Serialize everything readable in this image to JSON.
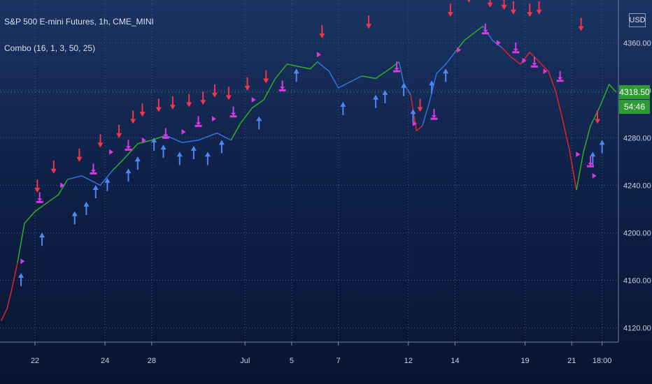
{
  "header": {
    "symbol_line": "S&P 500 E-mini Futures, 1h, CME_MINI",
    "indicator_line": "Combo (16, 1, 3, 50, 25)",
    "currency": "USD"
  },
  "price_badge": {
    "last_price": "4318.50",
    "countdown": "54:46"
  },
  "colors": {
    "up_trend": "#2fa52b",
    "neutral_trend": "#2f6fd6",
    "down_trend": "#d3232c",
    "buy_arrow": "#4e86f2",
    "sell_arrow": "#f0364a",
    "marker": "#d93ae0",
    "grid": "#3d5a8c",
    "price_badge_bg": "#2e9b35"
  },
  "chart_data": {
    "type": "line",
    "title": "S&P 500 E-mini Futures, 1h, CME_MINI",
    "y_axis": {
      "min": 4108,
      "max": 4396,
      "ticks": [
        "4120.00",
        "4160.00",
        "4200.00",
        "4240.00",
        "4280.00",
        "4320.00",
        "4360.00"
      ]
    },
    "x_axis": {
      "ticks": [
        {
          "label": "22",
          "x": 1
        },
        {
          "label": "24",
          "x": 4
        },
        {
          "label": "28",
          "x": 6
        },
        {
          "label": "Jul",
          "x": 10
        },
        {
          "label": "5",
          "x": 12
        },
        {
          "label": "7",
          "x": 14
        },
        {
          "label": "12",
          "x": 17
        },
        {
          "label": "14",
          "x": 19
        },
        {
          "label": "19",
          "x": 22
        },
        {
          "label": "21",
          "x": 24
        },
        {
          "label": "18:00",
          "x": 25.3
        }
      ],
      "range": [
        -0.5,
        26
      ]
    },
    "grid": true,
    "series": [
      {
        "trend": "down",
        "points": [
          [
            -0.45,
            4126
          ],
          [
            -0.2,
            4136
          ],
          [
            0.0,
            4152
          ],
          [
            0.25,
            4175
          ]
        ]
      },
      {
        "trend": "up",
        "points": [
          [
            0.25,
            4175
          ],
          [
            0.55,
            4208
          ],
          [
            1.0,
            4218
          ],
          [
            1.5,
            4225
          ],
          [
            2.0,
            4232
          ],
          [
            2.4,
            4245
          ]
        ]
      },
      {
        "trend": "neutral",
        "points": [
          [
            2.4,
            4245
          ],
          [
            3.0,
            4248
          ],
          [
            3.8,
            4240
          ],
          [
            4.3,
            4252
          ]
        ]
      },
      {
        "trend": "up",
        "points": [
          [
            4.3,
            4252
          ],
          [
            4.8,
            4262
          ],
          [
            5.4,
            4275
          ],
          [
            6.0,
            4278
          ],
          [
            6.6,
            4282
          ]
        ]
      },
      {
        "trend": "neutral",
        "points": [
          [
            6.6,
            4282
          ],
          [
            7.3,
            4276
          ],
          [
            8.0,
            4278
          ],
          [
            8.8,
            4284
          ],
          [
            9.4,
            4278
          ]
        ]
      },
      {
        "trend": "up",
        "points": [
          [
            9.4,
            4278
          ],
          [
            9.8,
            4292
          ],
          [
            10.3,
            4305
          ],
          [
            10.8,
            4312
          ],
          [
            11.3,
            4330
          ],
          [
            11.8,
            4342
          ],
          [
            12.3,
            4340
          ],
          [
            12.8,
            4338
          ],
          [
            13.1,
            4344
          ]
        ]
      },
      {
        "trend": "neutral",
        "points": [
          [
            13.1,
            4344
          ],
          [
            13.6,
            4336
          ],
          [
            14.0,
            4322
          ],
          [
            14.6,
            4328
          ],
          [
            15.0,
            4332
          ]
        ]
      },
      {
        "trend": "up",
        "points": [
          [
            15.0,
            4332
          ],
          [
            15.6,
            4330
          ],
          [
            16.2,
            4338
          ],
          [
            16.6,
            4344
          ]
        ]
      },
      {
        "trend": "neutral",
        "points": [
          [
            16.6,
            4344
          ],
          [
            16.8,
            4326
          ],
          [
            17.1,
            4316
          ]
        ]
      },
      {
        "trend": "down",
        "points": [
          [
            17.1,
            4316
          ],
          [
            17.35,
            4286
          ],
          [
            17.6,
            4290
          ]
        ]
      },
      {
        "trend": "neutral",
        "points": [
          [
            17.6,
            4290
          ],
          [
            17.9,
            4310
          ],
          [
            18.2,
            4334
          ],
          [
            18.6,
            4342
          ],
          [
            19.0,
            4352
          ]
        ]
      },
      {
        "trend": "up",
        "points": [
          [
            19.0,
            4352
          ],
          [
            19.4,
            4362
          ],
          [
            19.8,
            4368
          ],
          [
            20.2,
            4374
          ]
        ]
      },
      {
        "trend": "neutral",
        "points": [
          [
            20.2,
            4374
          ],
          [
            20.6,
            4362
          ],
          [
            21.0,
            4356
          ]
        ]
      },
      {
        "trend": "down",
        "points": [
          [
            21.0,
            4356
          ],
          [
            21.4,
            4348
          ],
          [
            21.8,
            4342
          ],
          [
            22.2,
            4352
          ],
          [
            22.6,
            4344
          ],
          [
            23.0,
            4336
          ],
          [
            23.3,
            4320
          ],
          [
            23.6,
            4296
          ],
          [
            23.9,
            4270
          ],
          [
            24.2,
            4236
          ]
        ]
      },
      {
        "trend": "up",
        "points": [
          [
            24.2,
            4236
          ],
          [
            24.5,
            4268
          ],
          [
            24.8,
            4290
          ],
          [
            25.2,
            4306
          ],
          [
            25.6,
            4325
          ],
          [
            25.9,
            4318.5
          ]
        ]
      }
    ],
    "buy_arrows": [
      [
        0.4,
        4168
      ],
      [
        1.3,
        4202
      ],
      [
        2.7,
        4220
      ],
      [
        3.2,
        4228
      ],
      [
        3.6,
        4242
      ],
      [
        4.1,
        4248
      ],
      [
        5.0,
        4256
      ],
      [
        5.4,
        4266
      ],
      [
        6.1,
        4282
      ],
      [
        6.5,
        4276
      ],
      [
        7.2,
        4270
      ],
      [
        7.8,
        4275
      ],
      [
        8.4,
        4270
      ],
      [
        9.0,
        4280
      ],
      [
        10.6,
        4300
      ],
      [
        12.2,
        4340
      ],
      [
        14.2,
        4312
      ],
      [
        15.6,
        4318
      ],
      [
        16.0,
        4322
      ],
      [
        16.8,
        4328
      ],
      [
        17.2,
        4306
      ],
      [
        18.0,
        4330
      ],
      [
        18.6,
        4340
      ],
      [
        24.9,
        4270
      ],
      [
        25.3,
        4280
      ]
    ],
    "sell_arrows": [
      [
        1.1,
        4232
      ],
      [
        1.8,
        4248
      ],
      [
        2.9,
        4258
      ],
      [
        3.8,
        4270
      ],
      [
        4.6,
        4278
      ],
      [
        5.2,
        4290
      ],
      [
        5.6,
        4296
      ],
      [
        6.3,
        4300
      ],
      [
        6.9,
        4302
      ],
      [
        7.6,
        4304
      ],
      [
        8.2,
        4306
      ],
      [
        8.7,
        4312
      ],
      [
        9.3,
        4310
      ],
      [
        10.1,
        4318
      ],
      [
        10.9,
        4324
      ],
      [
        13.3,
        4362
      ],
      [
        15.3,
        4370
      ],
      [
        17.5,
        4300
      ],
      [
        18.8,
        4380
      ],
      [
        19.6,
        4392
      ],
      [
        20.5,
        4388
      ],
      [
        21.1,
        4386
      ],
      [
        21.5,
        4382
      ],
      [
        22.2,
        4380
      ],
      [
        22.6,
        4382
      ],
      [
        24.4,
        4368
      ],
      [
        25.1,
        4290
      ]
    ],
    "markers": [
      [
        0.5,
        4176
      ],
      [
        1.2,
        4226
      ],
      [
        2.2,
        4240
      ],
      [
        3.5,
        4250
      ],
      [
        4.3,
        4268
      ],
      [
        5.0,
        4270
      ],
      [
        5.7,
        4278
      ],
      [
        6.6,
        4280
      ],
      [
        7.4,
        4285
      ],
      [
        8.0,
        4290
      ],
      [
        8.7,
        4296
      ],
      [
        9.5,
        4298
      ],
      [
        10.4,
        4312
      ],
      [
        11.6,
        4320
      ],
      [
        13.2,
        4350
      ],
      [
        16.5,
        4336
      ],
      [
        17.3,
        4292
      ],
      [
        18.1,
        4296
      ],
      [
        19.2,
        4354
      ],
      [
        20.3,
        4368
      ],
      [
        20.9,
        4360
      ],
      [
        21.6,
        4352
      ],
      [
        22.0,
        4345
      ],
      [
        22.4,
        4340
      ],
      [
        22.9,
        4336
      ],
      [
        23.5,
        4328
      ],
      [
        24.3,
        4266
      ],
      [
        24.8,
        4256
      ],
      [
        25.0,
        4248
      ]
    ]
  }
}
